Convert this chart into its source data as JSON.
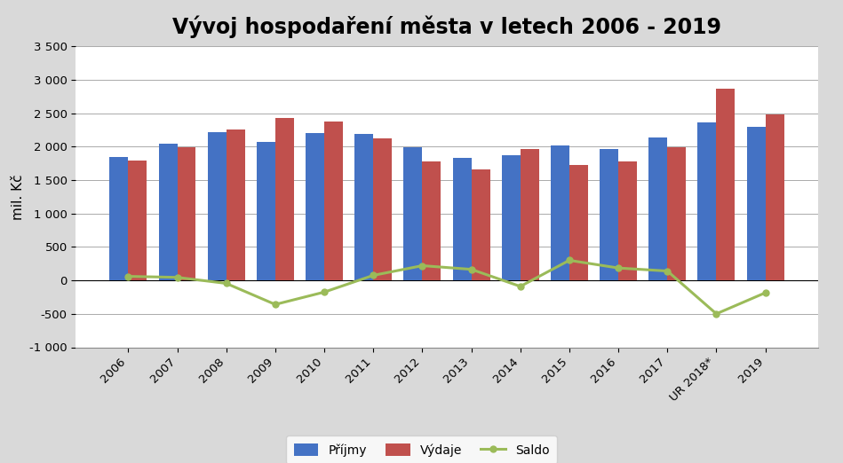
{
  "title": "Vývoj hospodaření města v letech 2006 - 2019",
  "ylabel": "mil. Kč",
  "categories": [
    "2006",
    "2007",
    "2008",
    "2009",
    "2010",
    "2011",
    "2012",
    "2013",
    "2014",
    "2015",
    "2016",
    "2017",
    "UR 2018*",
    "2019"
  ],
  "prijmy": [
    1850,
    2040,
    2210,
    2070,
    2200,
    2195,
    1995,
    1830,
    1870,
    2020,
    1960,
    2130,
    2360,
    2290
  ],
  "vydaje": [
    1790,
    1995,
    2255,
    2430,
    2375,
    2120,
    1775,
    1665,
    1960,
    1720,
    1775,
    1990,
    2860,
    2475
  ],
  "saldo": [
    60,
    45,
    -45,
    -360,
    -175,
    75,
    220,
    165,
    -90,
    300,
    185,
    140,
    -500,
    -185
  ],
  "bar_color_prijmy": "#4472C4",
  "bar_color_vydaje": "#C0504D",
  "line_color_saldo": "#9BBB59",
  "background_color": "#FFFFFF",
  "outer_background": "#D9D9D9",
  "ylim_min": -1000,
  "ylim_max": 3500,
  "yticks": [
    -1000,
    -500,
    0,
    500,
    1000,
    1500,
    2000,
    2500,
    3000,
    3500
  ],
  "legend_labels": [
    "Příjmy",
    "Výdaje",
    "Saldo"
  ],
  "title_fontsize": 17,
  "axis_fontsize": 11,
  "tick_fontsize": 9.5
}
